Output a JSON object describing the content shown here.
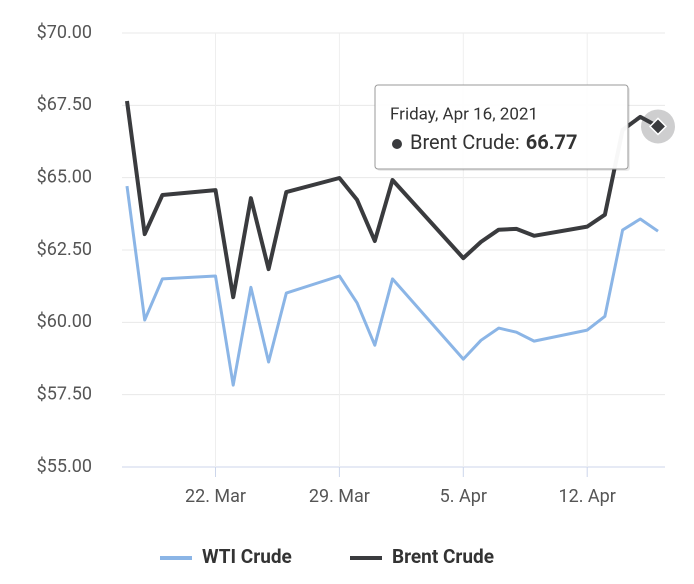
{
  "chart_data": {
    "type": "line",
    "x": [
      "2021-03-17",
      "2021-03-18",
      "2021-03-19",
      "2021-03-22",
      "2021-03-23",
      "2021-03-24",
      "2021-03-25",
      "2021-03-26",
      "2021-03-29",
      "2021-03-30",
      "2021-03-31",
      "2021-04-01",
      "2021-04-05",
      "2021-04-06",
      "2021-04-07",
      "2021-04-08",
      "2021-04-09",
      "2021-04-12",
      "2021-04-13",
      "2021-04-14",
      "2021-04-15",
      "2021-04-16"
    ],
    "series": [
      {
        "name": "WTI Crude",
        "color": "#8bb5e6",
        "values": [
          64.71,
          60.08,
          61.5,
          61.6,
          57.83,
          61.21,
          58.63,
          61.01,
          61.6,
          60.67,
          59.21,
          61.5,
          58.73,
          59.38,
          59.8,
          59.66,
          59.35,
          59.73,
          60.21,
          63.19,
          63.57,
          63.15
        ]
      },
      {
        "name": "Brent Crude",
        "color": "#3a3b3e",
        "values": [
          67.65,
          63.05,
          64.4,
          64.57,
          60.87,
          64.29,
          61.84,
          64.5,
          64.99,
          64.23,
          62.81,
          64.92,
          62.22,
          62.78,
          63.2,
          63.23,
          62.99,
          63.31,
          63.72,
          66.65,
          67.1,
          66.77
        ]
      }
    ],
    "xlim": [
      "2021-03-17",
      "2021-04-16"
    ],
    "xticks": [
      {
        "value": "2021-03-22",
        "label": "22. Mar"
      },
      {
        "value": "2021-03-29",
        "label": "29. Mar"
      },
      {
        "value": "2021-04-05",
        "label": "5. Apr"
      },
      {
        "value": "2021-04-12",
        "label": "12. Apr"
      }
    ],
    "ylim": [
      55,
      70
    ],
    "yticks": [
      {
        "value": 55,
        "label": "$55.00"
      },
      {
        "value": 57.5,
        "label": "$57.50"
      },
      {
        "value": 60,
        "label": "$60.00"
      },
      {
        "value": 62.5,
        "label": "$62.50"
      },
      {
        "value": 65,
        "label": "$65.00"
      },
      {
        "value": 67.5,
        "label": "$67.50"
      },
      {
        "value": 70,
        "label": "$70.00"
      }
    ],
    "grid": true,
    "tooltip": {
      "title": "Friday, Apr 16, 2021",
      "label": "Brent Crude:"
    }
  }
}
